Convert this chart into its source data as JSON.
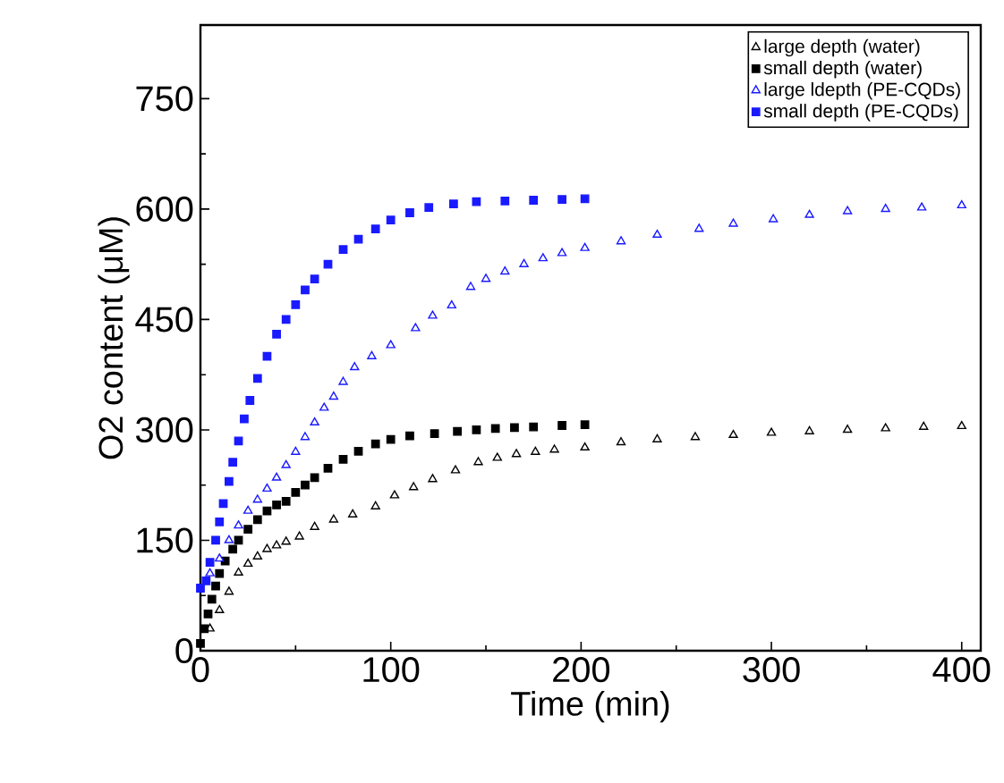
{
  "chart_data": {
    "type": "scatter",
    "xlabel": "Time (min)",
    "ylabel": "O2 content (μM)",
    "xlim": [
      0,
      410
    ],
    "ylim": [
      0,
      850
    ],
    "xticks": [
      0,
      100,
      200,
      300,
      400
    ],
    "yticks": [
      0,
      150,
      300,
      450,
      600,
      750
    ],
    "grid": false,
    "legend": "top right",
    "series": [
      {
        "name": "large depth  (water)",
        "color": "#000000",
        "marker": "triangle",
        "x": [
          5,
          10,
          15,
          20,
          25,
          30,
          35,
          40,
          45,
          52,
          60,
          70,
          80,
          92,
          102,
          112,
          122,
          134,
          146,
          156,
          166,
          176,
          186,
          202,
          221,
          240,
          260,
          280,
          300,
          320,
          340,
          360,
          380,
          400
        ],
        "values": [
          30,
          55,
          80,
          106,
          118,
          128,
          138,
          143,
          148,
          155,
          168,
          178,
          185,
          196,
          211,
          222,
          233,
          245,
          256,
          262,
          267,
          270,
          273,
          276,
          283,
          287,
          290,
          293,
          296,
          298,
          300,
          302,
          304,
          305
        ]
      },
      {
        "name": "small depth  (water)",
        "color": "#000000",
        "marker": "square",
        "x": [
          0,
          2,
          4,
          6,
          8,
          10,
          13,
          17,
          20,
          25,
          30,
          35,
          40,
          45,
          50,
          55,
          60,
          67,
          75,
          83,
          92,
          100,
          110,
          123,
          135,
          145,
          155,
          165,
          175,
          190,
          202
        ],
        "values": [
          10,
          30,
          50,
          70,
          88,
          105,
          122,
          138,
          150,
          165,
          178,
          190,
          198,
          203,
          215,
          225,
          235,
          248,
          260,
          271,
          281,
          287,
          292,
          295,
          298,
          300,
          302,
          303,
          304,
          306,
          307
        ]
      },
      {
        "name": "large ldepth  (PE-CQDs)",
        "color": "#1a1aff",
        "marker": "triangle",
        "x": [
          5,
          10,
          15,
          20,
          25,
          30,
          35,
          40,
          45,
          50,
          55,
          60,
          65,
          70,
          75,
          81,
          90,
          100,
          113,
          122,
          132,
          142,
          150,
          160,
          170,
          180,
          190,
          202,
          221,
          240,
          262,
          280,
          301,
          320,
          340,
          360,
          379,
          400
        ],
        "values": [
          105,
          125,
          150,
          170,
          190,
          205,
          220,
          235,
          252,
          270,
          290,
          310,
          330,
          345,
          365,
          385,
          400,
          415,
          438,
          455,
          469,
          494,
          505,
          515,
          525,
          533,
          540,
          547,
          556,
          565,
          573,
          580,
          586,
          592,
          597,
          600,
          602,
          605
        ]
      },
      {
        "name": "small depth  (PE-CQDs)",
        "color": "#1a1aff",
        "marker": "square",
        "x": [
          0,
          3,
          5,
          8,
          10,
          12,
          15,
          17,
          20,
          23,
          26,
          30,
          35,
          40,
          45,
          50,
          55,
          60,
          67,
          75,
          83,
          92,
          100,
          110,
          120,
          133,
          145,
          160,
          175,
          190,
          202
        ],
        "values": [
          85,
          95,
          120,
          150,
          175,
          200,
          230,
          256,
          285,
          315,
          340,
          370,
          400,
          430,
          450,
          470,
          490,
          505,
          525,
          545,
          559,
          573,
          585,
          595,
          602,
          607,
          610,
          611,
          612,
          613,
          614
        ]
      }
    ]
  }
}
